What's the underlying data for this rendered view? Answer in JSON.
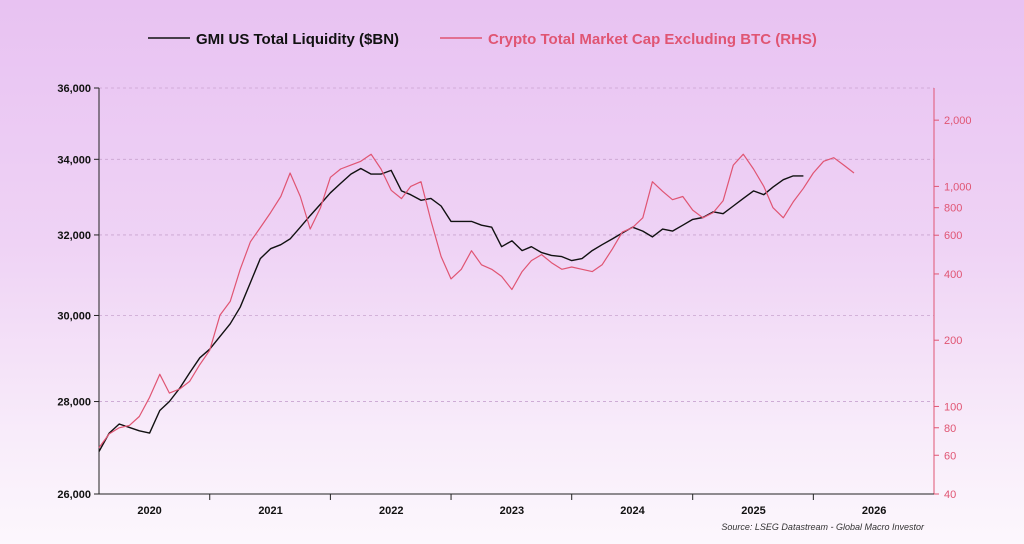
{
  "chart_data": {
    "type": "line",
    "title": "",
    "legend": {
      "placement": "top-center"
    },
    "grid": true,
    "x_ticks": [
      "2020",
      "2021",
      "2022",
      "2023",
      "2024",
      "2025",
      "2026"
    ],
    "y_left": {
      "ticks": [
        "26,000",
        "28,000",
        "30,000",
        "32,000",
        "34,000",
        "36,000"
      ],
      "range": [
        26000,
        36000
      ],
      "scale": "log"
    },
    "y_right": {
      "ticks": [
        "40",
        "60",
        "80",
        "100",
        "200",
        "400",
        "600",
        "800",
        "1,000",
        "2,000"
      ],
      "range": [
        40,
        2800
      ],
      "scale": "log"
    },
    "source": "Source: LSEG Datastream - Global Macro Investor",
    "series": [
      {
        "name": "GMI US Total Liquidity ($BN)",
        "axis": "left",
        "color": "#111111",
        "points": [
          [
            "2019-08-01",
            26900
          ],
          [
            "2019-09-01",
            27300
          ],
          [
            "2019-10-01",
            27500
          ],
          [
            "2019-12-01",
            27350
          ],
          [
            "2020-01-01",
            27300
          ],
          [
            "2020-02-01",
            27800
          ],
          [
            "2020-03-01",
            28000
          ],
          [
            "2020-04-01",
            28300
          ],
          [
            "2020-05-01",
            28650
          ],
          [
            "2020-06-01",
            29000
          ],
          [
            "2020-07-01",
            29200
          ],
          [
            "2020-08-01",
            29500
          ],
          [
            "2020-09-01",
            29800
          ],
          [
            "2020-10-01",
            30200
          ],
          [
            "2020-11-01",
            30800
          ],
          [
            "2020-12-01",
            31400
          ],
          [
            "2021-01-01",
            31650
          ],
          [
            "2021-02-01",
            31750
          ],
          [
            "2021-03-01",
            31900
          ],
          [
            "2021-04-01",
            32200
          ],
          [
            "2021-05-01",
            32500
          ],
          [
            "2021-06-01",
            32800
          ],
          [
            "2021-07-01",
            33100
          ],
          [
            "2021-08-01",
            33350
          ],
          [
            "2021-09-01",
            33600
          ],
          [
            "2021-10-01",
            33750
          ],
          [
            "2021-11-01",
            33600
          ],
          [
            "2021-12-01",
            33600
          ],
          [
            "2022-01-01",
            33700
          ],
          [
            "2022-02-01",
            33150
          ],
          [
            "2022-03-01",
            33050
          ],
          [
            "2022-04-01",
            32900
          ],
          [
            "2022-05-01",
            32950
          ],
          [
            "2022-06-01",
            32750
          ],
          [
            "2022-07-01",
            32350
          ],
          [
            "2022-08-01",
            32350
          ],
          [
            "2022-09-01",
            32350
          ],
          [
            "2022-10-01",
            32250
          ],
          [
            "2022-11-01",
            32200
          ],
          [
            "2022-12-01",
            31700
          ],
          [
            "2023-01-01",
            31850
          ],
          [
            "2023-02-01",
            31600
          ],
          [
            "2023-03-01",
            31700
          ],
          [
            "2023-04-01",
            31550
          ],
          [
            "2023-05-01",
            31480
          ],
          [
            "2023-06-01",
            31450
          ],
          [
            "2023-07-01",
            31350
          ],
          [
            "2023-08-01",
            31400
          ],
          [
            "2023-09-01",
            31600
          ],
          [
            "2023-10-01",
            31750
          ],
          [
            "2023-11-01",
            31900
          ],
          [
            "2023-12-01",
            32050
          ],
          [
            "2024-01-01",
            32200
          ],
          [
            "2024-02-01",
            32100
          ],
          [
            "2024-03-01",
            31950
          ],
          [
            "2024-04-01",
            32150
          ],
          [
            "2024-05-01",
            32100
          ],
          [
            "2024-06-01",
            32250
          ],
          [
            "2024-07-01",
            32400
          ],
          [
            "2024-08-01",
            32450
          ],
          [
            "2024-09-01",
            32600
          ],
          [
            "2024-10-01",
            32550
          ],
          [
            "2024-11-01",
            32750
          ],
          [
            "2024-12-01",
            32950
          ],
          [
            "2025-01-01",
            33150
          ],
          [
            "2025-02-01",
            33050
          ],
          [
            "2025-03-01",
            33250
          ],
          [
            "2025-04-01",
            33450
          ],
          [
            "2025-05-01",
            33550
          ],
          [
            "2025-06-01",
            33550
          ]
        ]
      },
      {
        "name": "Crypto Total Market Cap Excluding BTC (RHS)",
        "axis": "right",
        "color": "#e05573",
        "points": [
          [
            "2019-08-01",
            65
          ],
          [
            "2019-09-01",
            75
          ],
          [
            "2019-10-01",
            80
          ],
          [
            "2019-11-01",
            82
          ],
          [
            "2019-12-01",
            90
          ],
          [
            "2020-01-01",
            110
          ],
          [
            "2020-02-01",
            140
          ],
          [
            "2020-03-01",
            115
          ],
          [
            "2020-04-01",
            120
          ],
          [
            "2020-05-01",
            130
          ],
          [
            "2020-06-01",
            155
          ],
          [
            "2020-07-01",
            180
          ],
          [
            "2020-08-01",
            260
          ],
          [
            "2020-09-01",
            300
          ],
          [
            "2020-10-01",
            420
          ],
          [
            "2020-11-01",
            560
          ],
          [
            "2020-12-01",
            650
          ],
          [
            "2021-01-01",
            760
          ],
          [
            "2021-02-01",
            900
          ],
          [
            "2021-03-01",
            1150
          ],
          [
            "2021-04-01",
            900
          ],
          [
            "2021-05-01",
            640
          ],
          [
            "2021-06-01",
            800
          ],
          [
            "2021-07-01",
            1100
          ],
          [
            "2021-08-01",
            1200
          ],
          [
            "2021-09-01",
            1250
          ],
          [
            "2021-10-01",
            1300
          ],
          [
            "2021-11-01",
            1400
          ],
          [
            "2021-12-01",
            1200
          ],
          [
            "2022-01-01",
            960
          ],
          [
            "2022-02-01",
            880
          ],
          [
            "2022-03-01",
            1000
          ],
          [
            "2022-04-01",
            1050
          ],
          [
            "2022-05-01",
            700
          ],
          [
            "2022-06-01",
            480
          ],
          [
            "2022-07-01",
            380
          ],
          [
            "2022-08-01",
            420
          ],
          [
            "2022-09-01",
            510
          ],
          [
            "2022-10-01",
            440
          ],
          [
            "2022-11-01",
            420
          ],
          [
            "2022-12-01",
            390
          ],
          [
            "2023-01-01",
            340
          ],
          [
            "2023-02-01",
            410
          ],
          [
            "2023-03-01",
            460
          ],
          [
            "2023-04-01",
            490
          ],
          [
            "2023-05-01",
            450
          ],
          [
            "2023-06-01",
            420
          ],
          [
            "2023-07-01",
            430
          ],
          [
            "2023-08-01",
            420
          ],
          [
            "2023-09-01",
            410
          ],
          [
            "2023-10-01",
            440
          ],
          [
            "2023-11-01",
            520
          ],
          [
            "2023-12-01",
            620
          ],
          [
            "2024-01-01",
            650
          ],
          [
            "2024-02-01",
            720
          ],
          [
            "2024-03-01",
            1050
          ],
          [
            "2024-04-01",
            950
          ],
          [
            "2024-05-01",
            870
          ],
          [
            "2024-06-01",
            900
          ],
          [
            "2024-07-01",
            780
          ],
          [
            "2024-08-01",
            720
          ],
          [
            "2024-09-01",
            760
          ],
          [
            "2024-10-01",
            860
          ],
          [
            "2024-11-01",
            1250
          ],
          [
            "2024-12-01",
            1400
          ],
          [
            "2025-01-01",
            1200
          ],
          [
            "2025-02-01",
            1000
          ],
          [
            "2025-03-01",
            800
          ],
          [
            "2025-04-01",
            720
          ],
          [
            "2025-05-01",
            850
          ],
          [
            "2025-06-01",
            980
          ],
          [
            "2025-07-01",
            1150
          ],
          [
            "2025-08-01",
            1300
          ],
          [
            "2025-09-01",
            1350
          ],
          [
            "2025-10-01",
            1250
          ],
          [
            "2025-11-01",
            1150
          ]
        ]
      }
    ]
  }
}
